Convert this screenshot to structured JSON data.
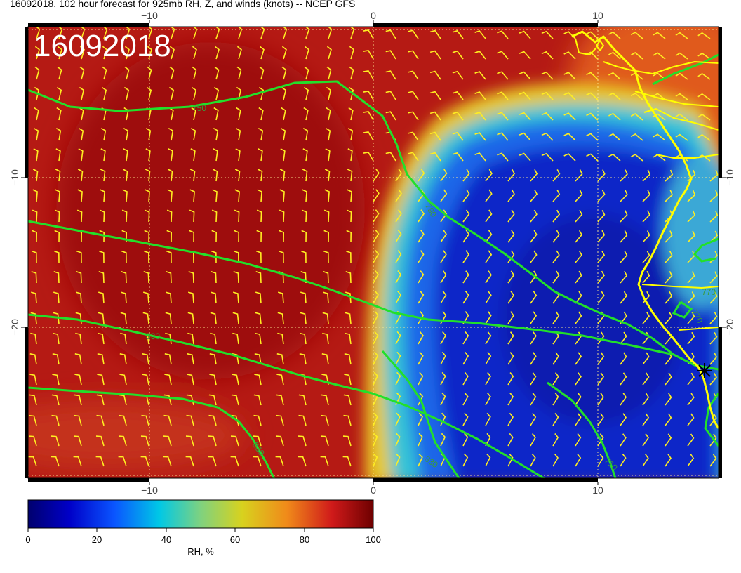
{
  "header": {
    "title": "16092018, 102 hour forecast for 925mb RH, Z, and winds (knots) -- NCEP GFS"
  },
  "map": {
    "stamp": "16092018",
    "lon_ticks": [
      {
        "value": -10,
        "label": "−10"
      },
      {
        "value": 0,
        "label": "0"
      },
      {
        "value": 10,
        "label": "10"
      }
    ],
    "lat_ticks": [
      {
        "value": -10,
        "label": "−10"
      },
      {
        "value": -20,
        "label": "−20"
      }
    ],
    "contour_labels": [
      "750",
      "790",
      "830",
      "830",
      "770",
      "710",
      "830",
      "770"
    ],
    "colors": {
      "rh_dry": "#0a1fc8",
      "rh_mid": "#f3e33a",
      "rh_wet": "#a50f0f",
      "contour": "#22e02a",
      "coast": "#ffff00",
      "barb": "#ffee22"
    }
  },
  "colorbar": {
    "ticks": [
      "0",
      "20",
      "40",
      "60",
      "80",
      "100"
    ],
    "label": "RH, %"
  }
}
